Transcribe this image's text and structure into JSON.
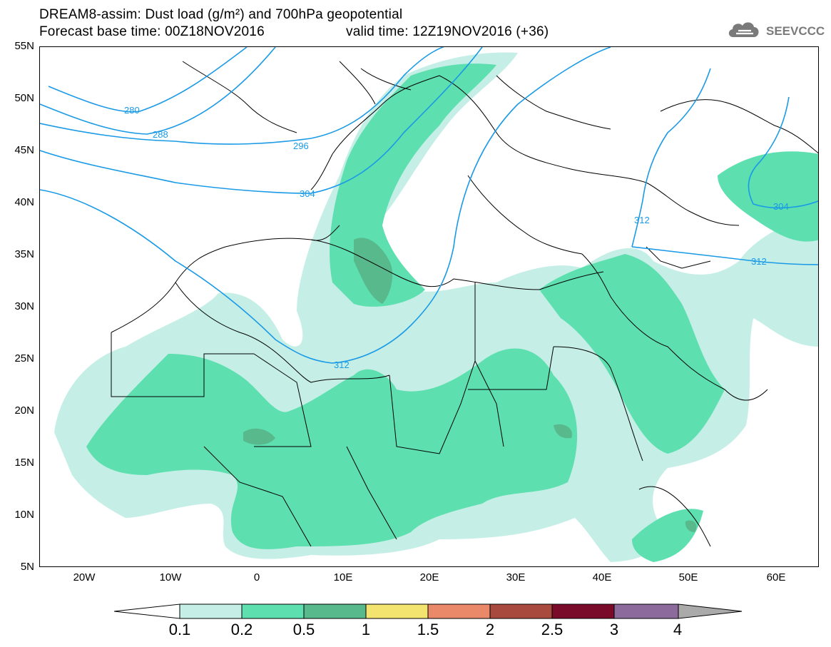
{
  "title": {
    "line1": "DREAM8-assim: Dust load (g/m²) and 700hPa geopotential",
    "line2_base": "Forecast base time: 00Z18NOV2016",
    "line2_valid": "valid time: 12Z19NOV2016 (+36)"
  },
  "logo": {
    "icon": "cloud-icon",
    "text": "SEEVCCC"
  },
  "map": {
    "lat_labels": [
      "55N",
      "50N",
      "45N",
      "40N",
      "35N",
      "30N",
      "25N",
      "20N",
      "15N",
      "10N",
      "5N"
    ],
    "lon_labels": [
      "20W",
      "10W",
      "0",
      "10E",
      "20E",
      "30E",
      "40E",
      "50E",
      "60E"
    ],
    "contour_labels": [
      "280",
      "288",
      "296",
      "304",
      "312",
      "304",
      "312",
      "312"
    ],
    "colors": {
      "land_border": "#000000",
      "contour_line": "#1a9ae6"
    }
  },
  "legend": {
    "ticks": [
      "0.1",
      "0.2",
      "0.5",
      "1",
      "1.5",
      "2",
      "2.5",
      "3",
      "4"
    ],
    "colors": [
      "#ffffff",
      "#c5efe6",
      "#5edfb0",
      "#57b98c",
      "#f2e46e",
      "#e9896a",
      "#a84a3e",
      "#7a0a2a",
      "#8c6a9c",
      "#aaaaaa"
    ]
  }
}
